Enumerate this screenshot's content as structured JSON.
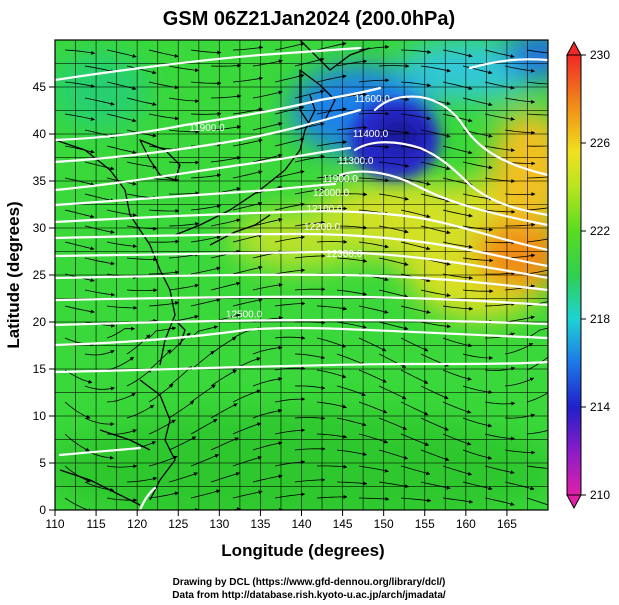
{
  "title": "GSM 06Z21Jan2024 (200.0hPa)",
  "x_axis": {
    "label": "Longitude (degrees)",
    "range": [
      110,
      170
    ],
    "ticks": [
      "110",
      "115",
      "120",
      "125",
      "130",
      "135",
      "140",
      "145",
      "150",
      "155",
      "160",
      "165"
    ]
  },
  "y_axis": {
    "label": "Latitude  (degrees)",
    "range": [
      0,
      50
    ],
    "ticks": [
      "0",
      "5",
      "10",
      "15",
      "20",
      "25",
      "30",
      "35",
      "40",
      "45"
    ]
  },
  "colorbar": {
    "range": [
      210,
      230
    ],
    "ticks": [
      "210",
      "214",
      "218",
      "222",
      "226",
      "230"
    ]
  },
  "contour_labels": [
    {
      "text": "11600.0",
      "lon": 148.6,
      "lat": 43.4
    },
    {
      "text": "11400.0",
      "lon": 148.4,
      "lat": 39.7
    },
    {
      "text": "11300.0",
      "lon": 146.6,
      "lat": 36.8
    },
    {
      "text": "11900.0",
      "lon": 144.7,
      "lat": 34.9
    },
    {
      "text": "12000.0",
      "lon": 143.6,
      "lat": 33.4
    },
    {
      "text": "12100.0",
      "lon": 142.8,
      "lat": 31.7
    },
    {
      "text": "12200.0",
      "lon": 142.5,
      "lat": 29.8
    },
    {
      "text": "12300.0",
      "lon": 145.2,
      "lat": 26.9
    },
    {
      "text": "11900.0",
      "lon": 128.5,
      "lat": 40.3
    },
    {
      "text": "12500.0",
      "lon": 133.0,
      "lat": 20.5
    }
  ],
  "credits": {
    "line1": "Drawing by DCL (https://www.gfd-dennou.org/library/dcl/)",
    "line2": "Data from http://database.rish.kyoto-u.ac.jp/arch/jmadata/"
  },
  "colors": {
    "field_base": "#33d633",
    "cold_core": "#2020c8",
    "warm_core": "#f07a10",
    "contour": "#ffffff",
    "grid": "#000000"
  }
}
